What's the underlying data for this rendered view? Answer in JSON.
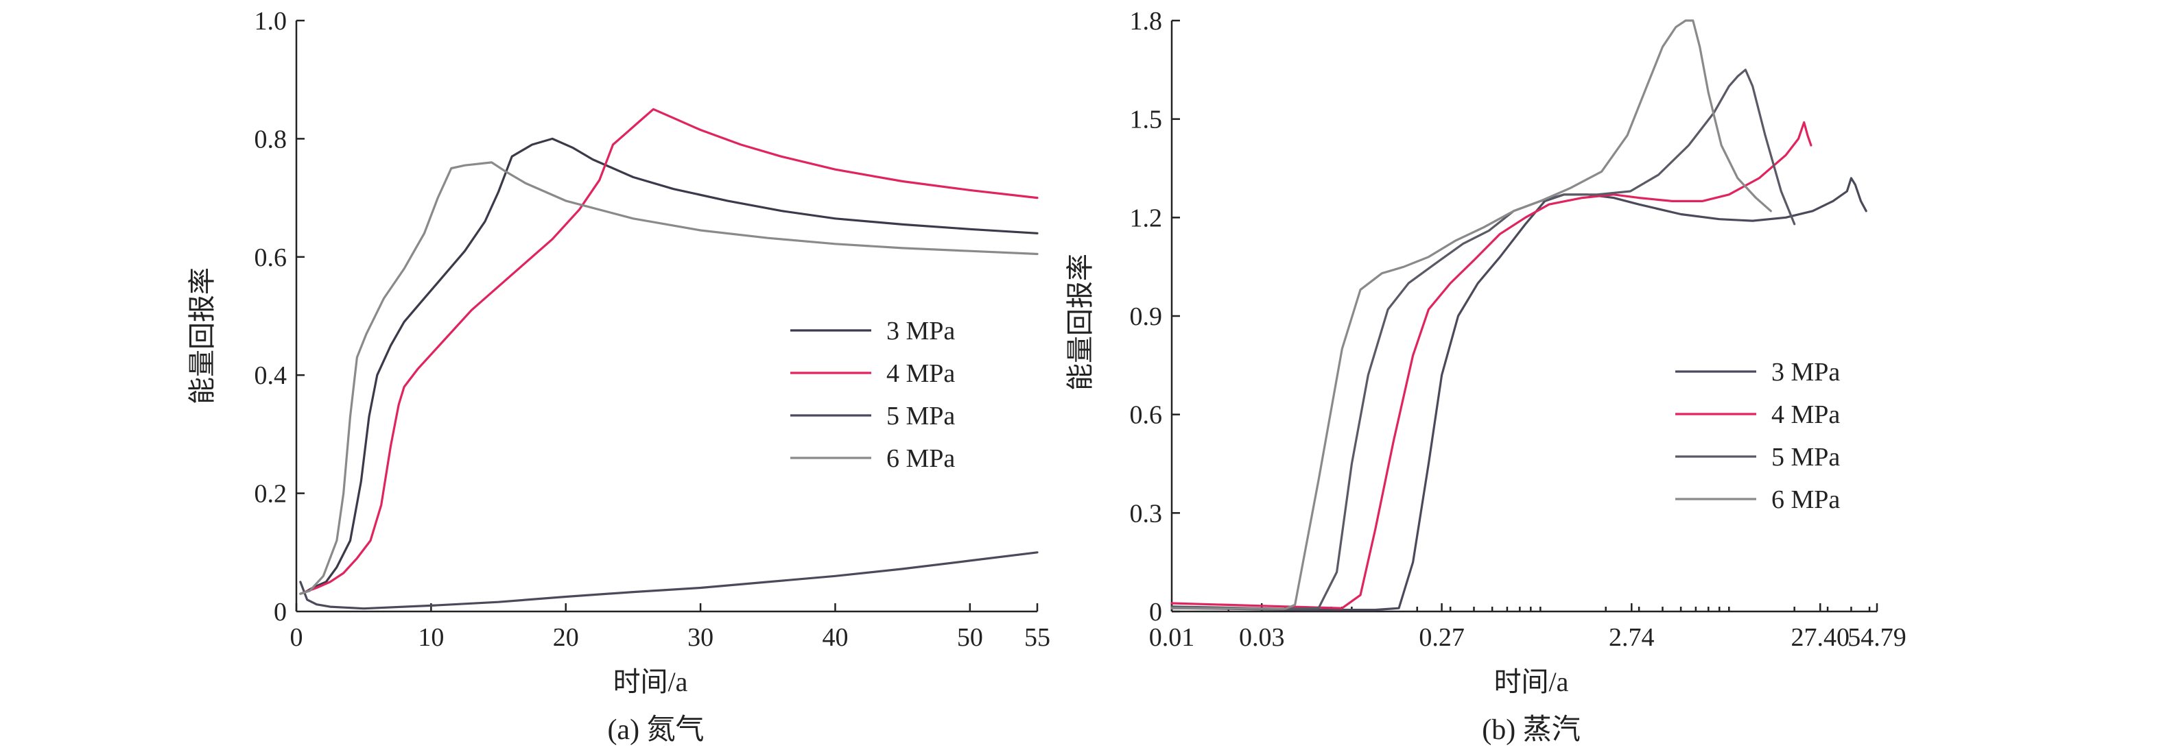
{
  "chart_data": [
    {
      "type": "line",
      "caption": "(a) 氮气",
      "xlabel": "时间/a",
      "ylabel": "能量回报率",
      "xlim": [
        0,
        55
      ],
      "ylim": [
        0,
        1.0
      ],
      "x_scale": "linear",
      "xticks": [
        0,
        10,
        20,
        30,
        40,
        50,
        55
      ],
      "yticks": [
        0.2,
        0.4,
        0.6,
        0.8,
        1.0
      ],
      "x_tick_labels": [
        "0",
        "10",
        "20",
        "30",
        "40",
        "50",
        "55"
      ],
      "y_tick_labels": [
        "0.2",
        "0.4",
        "0.6",
        "0.8",
        "1.0"
      ],
      "legend_position": "right",
      "series": [
        {
          "name": "3 MPa",
          "color": "#3a3a4a",
          "x": [
            0.3,
            0.6,
            1.2,
            2.2,
            3.0,
            4.0,
            4.8,
            5.4,
            6.0,
            7.0,
            8.0,
            9.5,
            11.0,
            12.5,
            14.0,
            15.0,
            16.0,
            17.5,
            19.0,
            20.5,
            22.0,
            25.0,
            28.0,
            32.0,
            36.0,
            40.0,
            45.0,
            50.0,
            55.0
          ],
          "y": [
            0.03,
            0.032,
            0.04,
            0.05,
            0.075,
            0.12,
            0.22,
            0.33,
            0.4,
            0.45,
            0.49,
            0.53,
            0.57,
            0.61,
            0.66,
            0.71,
            0.77,
            0.79,
            0.8,
            0.785,
            0.765,
            0.735,
            0.715,
            0.695,
            0.678,
            0.665,
            0.655,
            0.647,
            0.64
          ]
        },
        {
          "name": "4 MPa",
          "color": "#e0245e",
          "x": [
            0.3,
            1.5,
            2.5,
            3.5,
            4.5,
            5.5,
            6.3,
            7.0,
            7.6,
            8.0,
            9.0,
            11.0,
            13.0,
            15.0,
            17.0,
            19.0,
            21.0,
            22.5,
            23.5,
            24.5,
            25.5,
            26.5,
            28.0,
            30.0,
            33.0,
            36.0,
            40.0,
            45.0,
            50.0,
            55.0
          ],
          "y": [
            0.03,
            0.04,
            0.05,
            0.065,
            0.09,
            0.12,
            0.18,
            0.28,
            0.35,
            0.38,
            0.41,
            0.46,
            0.51,
            0.55,
            0.59,
            0.63,
            0.68,
            0.73,
            0.79,
            0.81,
            0.83,
            0.85,
            0.835,
            0.815,
            0.79,
            0.77,
            0.748,
            0.728,
            0.713,
            0.7
          ]
        },
        {
          "name": "5 MPa",
          "color": "#4a4a5a",
          "x": [
            0.3,
            0.8,
            1.5,
            2.5,
            5.0,
            10.0,
            15.0,
            20.0,
            25.0,
            30.0,
            35.0,
            40.0,
            45.0,
            50.0,
            55.0
          ],
          "y": [
            0.05,
            0.02,
            0.012,
            0.008,
            0.005,
            0.01,
            0.016,
            0.025,
            0.033,
            0.04,
            0.05,
            0.06,
            0.072,
            0.086,
            0.1
          ]
        },
        {
          "name": "6 MPa",
          "color": "#8a8a8a",
          "x": [
            0.3,
            1.0,
            2.0,
            3.0,
            3.5,
            4.0,
            4.5,
            5.2,
            6.5,
            8.0,
            9.5,
            10.5,
            11.5,
            12.5,
            14.5,
            15.5,
            17.0,
            20.0,
            25.0,
            30.0,
            35.0,
            40.0,
            45.0,
            50.0,
            55.0
          ],
          "y": [
            0.03,
            0.035,
            0.06,
            0.12,
            0.2,
            0.33,
            0.43,
            0.47,
            0.53,
            0.58,
            0.64,
            0.7,
            0.75,
            0.755,
            0.76,
            0.745,
            0.725,
            0.695,
            0.665,
            0.645,
            0.632,
            0.622,
            0.615,
            0.61,
            0.605
          ]
        }
      ]
    },
    {
      "type": "line",
      "caption": "(b) 蒸汽",
      "xlabel": "时间/a",
      "ylabel": "能量回报率",
      "xlim": [
        0.01,
        54.79
      ],
      "ylim": [
        0,
        1.8
      ],
      "x_scale": "log",
      "xticks": [
        0.01,
        0.03,
        0.27,
        2.74,
        27.4,
        54.79
      ],
      "yticks": [
        0,
        0.3,
        0.6,
        0.9,
        1.2,
        1.5,
        1.8
      ],
      "x_tick_labels": [
        "0.01",
        "0.03",
        "0.27",
        "2.74",
        "27.40",
        "54.79"
      ],
      "y_tick_labels": [
        "0",
        "0.3",
        "0.6",
        "0.9",
        "1.2",
        "1.5",
        "1.8"
      ],
      "legend_position": "right",
      "series": [
        {
          "name": "3 MPa",
          "color": "#4a4a5a",
          "x": [
            0.01,
            0.05,
            0.12,
            0.16,
            0.19,
            0.23,
            0.27,
            0.33,
            0.42,
            0.55,
            0.75,
            0.95,
            1.2,
            1.6,
            2.2,
            3.0,
            5.0,
            8.0,
            12.0,
            18.0,
            25.0,
            32.0,
            38.0,
            40.0,
            42.0,
            45.0,
            48.0
          ],
          "y": [
            0.01,
            0.005,
            0.005,
            0.01,
            0.15,
            0.45,
            0.72,
            0.9,
            1.0,
            1.08,
            1.18,
            1.25,
            1.27,
            1.27,
            1.26,
            1.24,
            1.21,
            1.195,
            1.19,
            1.2,
            1.22,
            1.25,
            1.28,
            1.32,
            1.3,
            1.25,
            1.22
          ]
        },
        {
          "name": "4 MPa",
          "color": "#e0245e",
          "x": [
            0.01,
            0.04,
            0.08,
            0.1,
            0.12,
            0.15,
            0.19,
            0.23,
            0.3,
            0.4,
            0.55,
            0.75,
            1.0,
            1.5,
            2.2,
            3.0,
            4.5,
            6.5,
            9.0,
            13.0,
            18.0,
            21.0,
            22.5,
            23.5,
            24.5
          ],
          "y": [
            0.025,
            0.015,
            0.01,
            0.05,
            0.25,
            0.52,
            0.78,
            0.92,
            1.0,
            1.07,
            1.15,
            1.2,
            1.24,
            1.26,
            1.27,
            1.26,
            1.25,
            1.25,
            1.27,
            1.32,
            1.39,
            1.44,
            1.49,
            1.45,
            1.42
          ]
        },
        {
          "name": "5 MPa",
          "color": "#5a5a66",
          "x": [
            0.01,
            0.04,
            0.06,
            0.075,
            0.09,
            0.11,
            0.14,
            0.18,
            0.25,
            0.35,
            0.48,
            0.65,
            0.9,
            1.2,
            1.8,
            2.7,
            3.8,
            5.5,
            7.5,
            9.0,
            10.0,
            11.0,
            12.0,
            14.0,
            17.0,
            20.0
          ],
          "y": [
            0.015,
            0.008,
            0.01,
            0.12,
            0.45,
            0.72,
            0.92,
            1.0,
            1.06,
            1.12,
            1.16,
            1.22,
            1.25,
            1.27,
            1.27,
            1.28,
            1.33,
            1.42,
            1.52,
            1.6,
            1.63,
            1.65,
            1.6,
            1.45,
            1.28,
            1.18
          ]
        },
        {
          "name": "6 MPa",
          "color": "#8a8a8a",
          "x": [
            0.01,
            0.04,
            0.045,
            0.06,
            0.08,
            0.1,
            0.13,
            0.17,
            0.23,
            0.32,
            0.45,
            0.65,
            0.9,
            1.3,
            1.9,
            2.6,
            3.3,
            4.0,
            4.7,
            5.3,
            5.8,
            6.3,
            7.0,
            8.2,
            10.0,
            12.5,
            15.0
          ],
          "y": [
            0.01,
            0.008,
            0.02,
            0.4,
            0.8,
            0.98,
            1.03,
            1.05,
            1.08,
            1.13,
            1.17,
            1.22,
            1.25,
            1.29,
            1.34,
            1.45,
            1.6,
            1.72,
            1.78,
            1.8,
            1.8,
            1.72,
            1.58,
            1.42,
            1.32,
            1.26,
            1.22
          ]
        }
      ]
    }
  ]
}
